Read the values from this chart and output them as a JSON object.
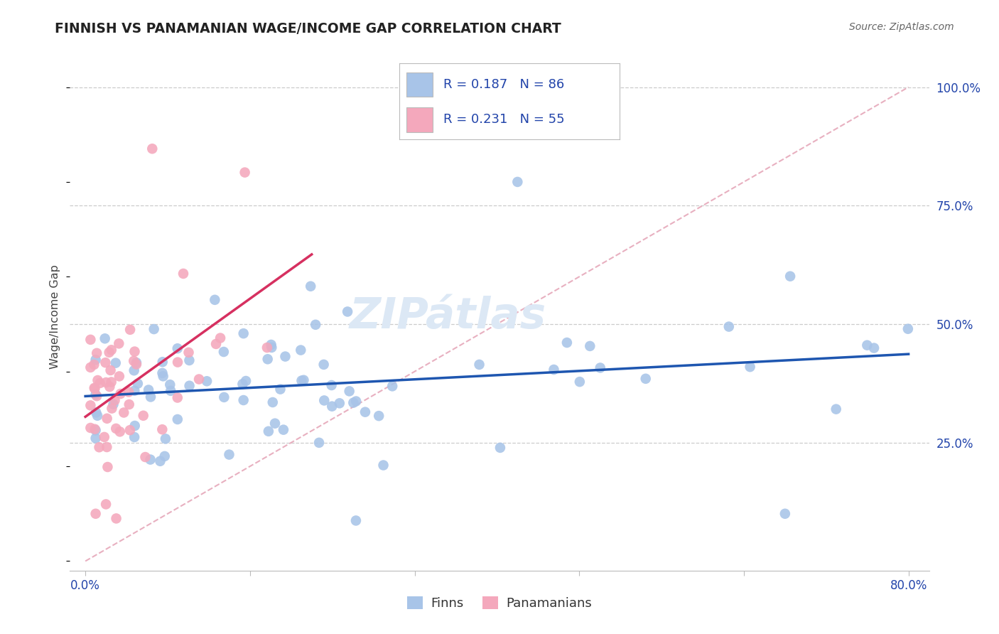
{
  "title": "FINNISH VS PANAMANIAN WAGE/INCOME GAP CORRELATION CHART",
  "source": "Source: ZipAtlas.com",
  "ylabel": "Wage/Income Gap",
  "finn_color": "#a8c4e8",
  "pan_color": "#f4a8bc",
  "finn_line_color": "#1e56b0",
  "pan_line_color": "#d63060",
  "diag_color": "#e8b0c0",
  "watermark_color": "#dce8f5",
  "background_color": "#ffffff",
  "grid_color": "#cccccc",
  "tick_label_color": "#2244aa",
  "title_color": "#222222",
  "source_color": "#666666",
  "legend_text_color": "#2244aa",
  "bottom_legend_color": "#333333",
  "r_finn": "R = 0.187",
  "n_finn": "N = 86",
  "r_pan": "R = 0.231",
  "n_pan": "N = 55",
  "finn_label": "Finns",
  "pan_label": "Panamanians"
}
